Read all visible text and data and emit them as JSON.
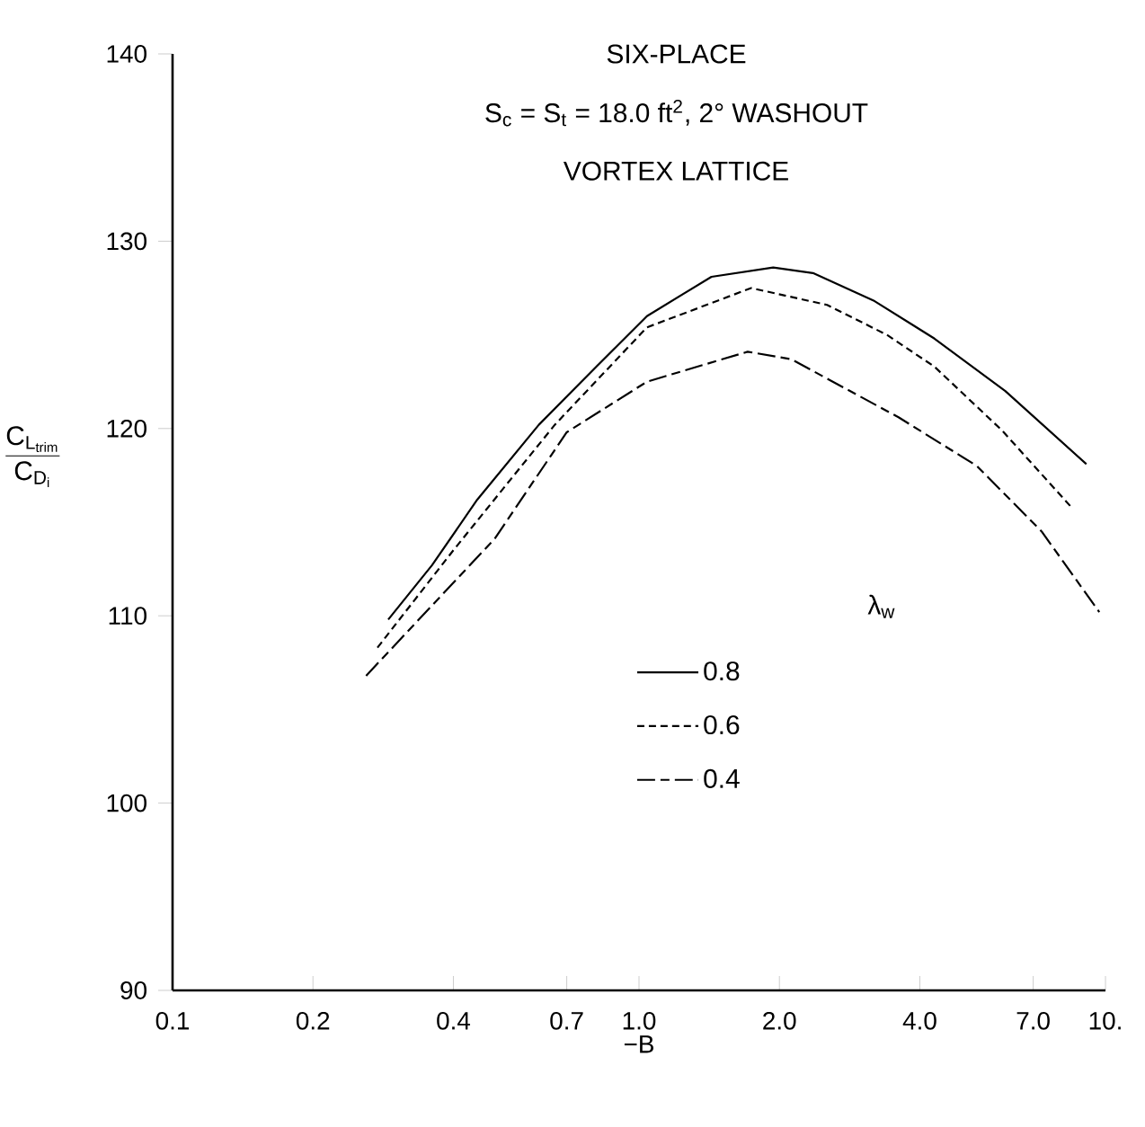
{
  "chart_data": {
    "type": "line",
    "title": "SIX-PLACE",
    "subtitle": "S$_{c}$ = S$_{t}$ = 18.0 ft$^{2}$, 2° WASHOUT",
    "annotations": [
      "VORTEX LATTICE"
    ],
    "xlabel": "−B",
    "ylabel": "\\frac{\\mathrm{C}_{\\mathrm{L}_{\\mathrm{trim}}}}{\\mathrm{C}_{\\mathrm{D}_{\\mathrm{i}}}}",
    "legend_title": "λ$_{w}$",
    "log": "x",
    "grid": false,
    "legend": "right",
    "marker": "none",
    "xlim": [
      0.1,
      10
    ],
    "ylim": [
      90,
      140
    ],
    "xticks": [
      0.1,
      0.2,
      0.4,
      0.7,
      {
        "value": 1,
        "label": "1.0"
      },
      {
        "value": 2,
        "label": "2.0"
      },
      {
        "value": 4,
        "label": "4.0"
      },
      {
        "value": 7,
        "label": "7.0"
      },
      {
        "value": 10,
        "label": "10."
      }
    ],
    "yticks": [
      90,
      100,
      110,
      120,
      130,
      140
    ],
    "series": [
      {
        "name": "0.8",
        "color": "#000000",
        "line_style": "solid",
        "x": [
          0.29,
          0.36,
          0.45,
          0.61,
          0.81,
          1.04,
          1.43,
          1.94,
          2.36,
          3.2,
          4.3,
          6.1,
          9.1
        ],
        "values": [
          109.8,
          112.7,
          116.2,
          120.2,
          123.3,
          126.0,
          128.1,
          128.6,
          128.3,
          126.8,
          124.8,
          122.0,
          118.1
        ]
      },
      {
        "name": "0.6",
        "color": "#000000",
        "line_style": "dashed",
        "x": [
          0.275,
          0.4,
          0.66,
          1.04,
          1.74,
          2.53,
          3.4,
          4.3,
          6.0,
          8.45
        ],
        "values": [
          108.3,
          113.5,
          120.2,
          125.4,
          127.5,
          126.6,
          125.0,
          123.3,
          119.9,
          115.8
        ]
      },
      {
        "name": "0.4",
        "color": "#000000",
        "line_style": "dashdot",
        "x": [
          0.26,
          0.49,
          0.7,
          1.04,
          1.71,
          2.12,
          3.6,
          5.3,
          7.3,
          9.7
        ],
        "values": [
          106.8,
          114.1,
          119.8,
          122.5,
          124.1,
          123.7,
          120.6,
          118.0,
          114.5,
          110.2
        ]
      }
    ]
  }
}
